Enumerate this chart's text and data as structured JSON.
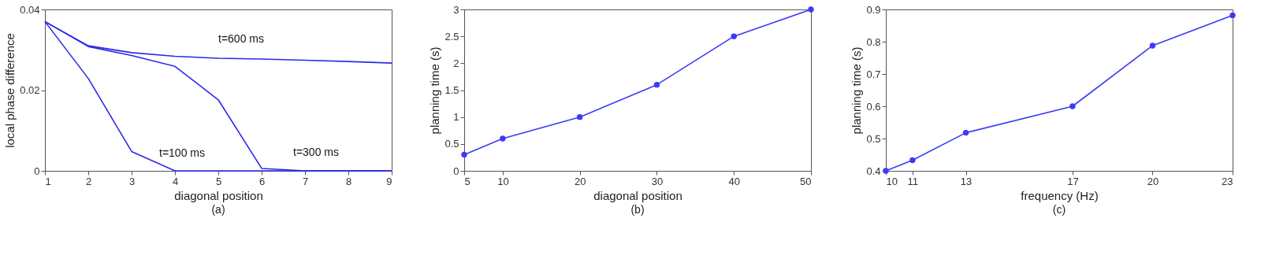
{
  "chart_data": [
    {
      "type": "line",
      "xlabel": "diagonal position",
      "ylabel": "local phase difference",
      "x": [
        1,
        2,
        3,
        4,
        5,
        6,
        7,
        8,
        9
      ],
      "xlim": [
        1,
        9
      ],
      "ylim": [
        0,
        0.04
      ],
      "xticks": [
        1,
        2,
        3,
        4,
        5,
        6,
        7,
        8,
        9
      ],
      "yticks": [
        0,
        0.02,
        0.04
      ],
      "grid": false,
      "marker": "none",
      "line_style": "solid",
      "annotations": [
        "(a)"
      ],
      "series": [
        {
          "name": "t=600 ms",
          "color": "#2a2ae8",
          "values": [
            0.037,
            0.031,
            0.0293,
            0.0284,
            0.0279,
            0.0277,
            0.0274,
            0.0271,
            0.0267
          ]
        },
        {
          "name": "t=300 ms",
          "color": "#2a2ae8",
          "values": [
            0.037,
            0.0308,
            0.0286,
            0.0259,
            0.0176,
            0.0006,
            0,
            0,
            0
          ]
        },
        {
          "name": "t=100 ms",
          "color": "#2a2ae8",
          "values": [
            0.037,
            0.0229,
            0.0048,
            0,
            0,
            0,
            0,
            0,
            0
          ]
        }
      ]
    },
    {
      "type": "line",
      "xlabel": "diagonal position",
      "ylabel": "planning time (s)",
      "x": [
        5,
        10,
        20,
        30,
        40,
        50
      ],
      "xlim": [
        5,
        50
      ],
      "ylim": [
        0,
        3
      ],
      "xticks": [
        5,
        10,
        20,
        30,
        40,
        50
      ],
      "yticks": [
        0,
        0.5,
        1,
        1.5,
        2,
        2.5,
        3
      ],
      "grid": false,
      "marker": "circle",
      "line_style": "solid",
      "annotations": [
        "(b)"
      ],
      "series": [
        {
          "color": "#3b3bf5",
          "values": [
            0.3,
            0.6,
            1.0,
            1.6,
            2.5,
            3.0
          ]
        }
      ]
    },
    {
      "type": "line",
      "xlabel": "frequency (Hz)",
      "ylabel": "planning time (s)",
      "x": [
        10,
        11,
        13,
        17,
        20,
        23
      ],
      "xlim": [
        10,
        23
      ],
      "ylim": [
        0.4,
        0.9
      ],
      "xticks": [
        10,
        11,
        13,
        17,
        20,
        23
      ],
      "yticks": [
        0.4,
        0.5,
        0.6,
        0.7,
        0.8,
        0.9
      ],
      "grid": false,
      "marker": "circle",
      "line_style": "solid",
      "annotations": [
        "(c)"
      ],
      "series": [
        {
          "color": "#3b3bf5",
          "values": [
            0.4,
            0.433,
            0.518,
            0.6,
            0.788,
            0.882
          ]
        }
      ]
    }
  ]
}
